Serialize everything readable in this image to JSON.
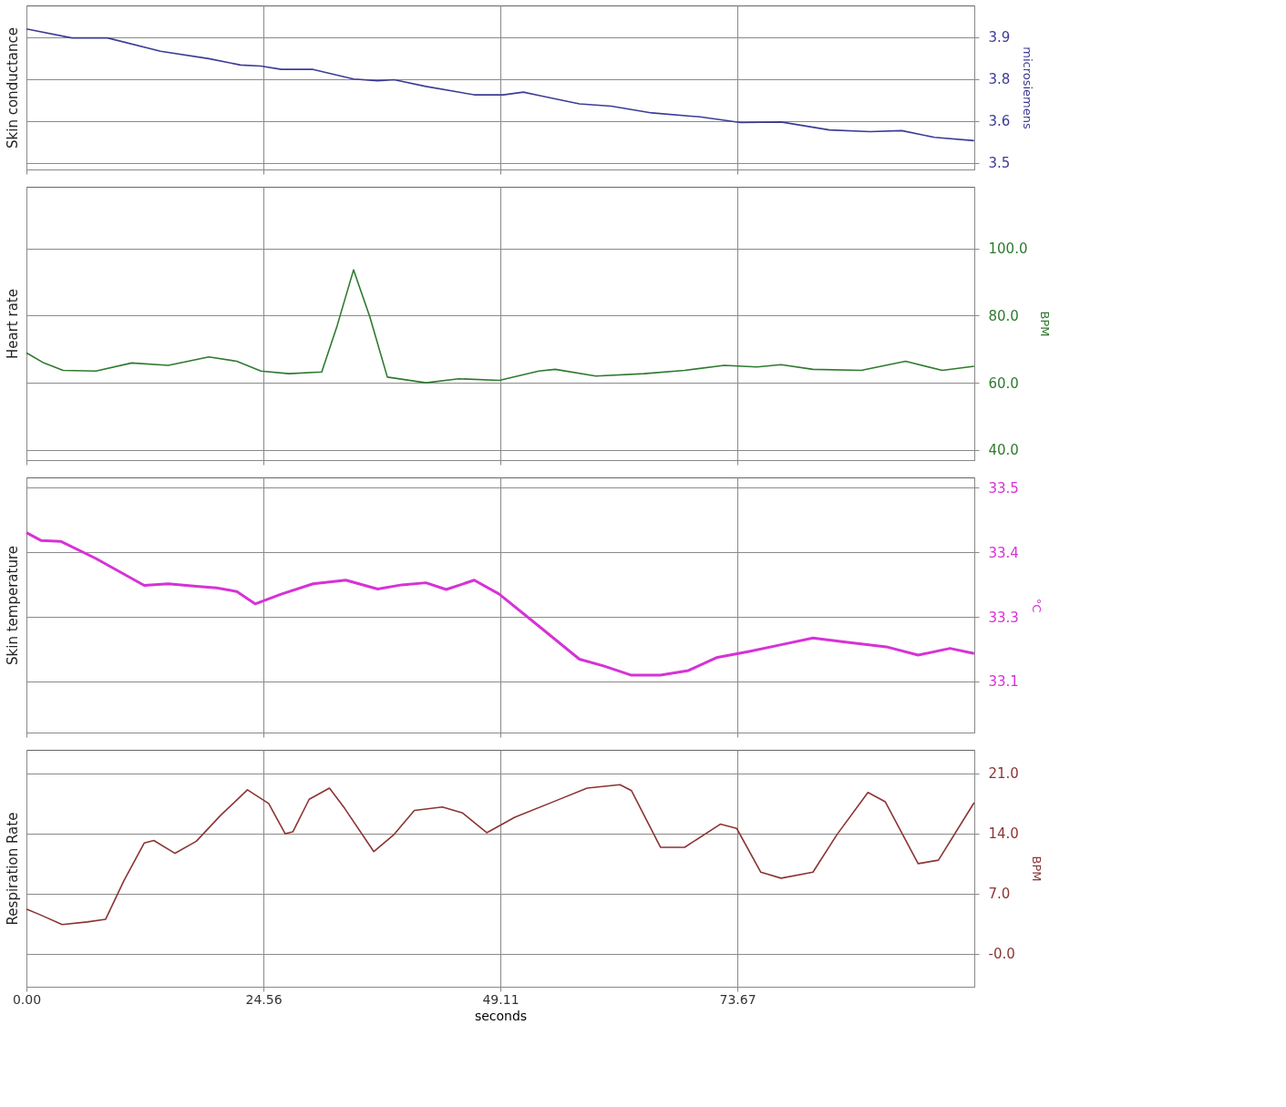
{
  "chart_data": [
    {
      "type": "line",
      "ylabel": "Skin conductance",
      "y2label": "microsiemens",
      "tick_labels": "y",
      "grid": true,
      "xlim": [
        0,
        98.22
      ],
      "xticks": [
        {
          "value": 0,
          "label": null
        },
        {
          "value": 24.56,
          "label": null
        },
        {
          "value": 49.11,
          "label": null
        },
        {
          "value": 73.67,
          "label": null
        }
      ],
      "ylim": [
        3.48,
        3.97
      ],
      "yticks": [
        {
          "value": 3.5,
          "label": "3.5"
        },
        {
          "value": 3.625,
          "label": "3.6"
        },
        {
          "value": 3.75,
          "label": "3.8"
        },
        {
          "value": 3.875,
          "label": "3.9"
        }
      ],
      "x": [
        0,
        4.7,
        8.4,
        13.9,
        18.9,
        22.2,
        24.3,
        26.4,
        29.7,
        33.9,
        36.4,
        38.1,
        41.4,
        46.4,
        49.4,
        51.5,
        53.1,
        57.3,
        60.6,
        64.8,
        69.8,
        74.0,
        78.2,
        83.2,
        87.4,
        90.7,
        94.1,
        98.2
      ],
      "series": [
        {
          "color": "#3c3c96",
          "values": [
            3.9,
            3.873,
            3.873,
            3.833,
            3.811,
            3.792,
            3.789,
            3.779,
            3.779,
            3.75,
            3.745,
            3.748,
            3.728,
            3.703,
            3.703,
            3.711,
            3.701,
            3.676,
            3.669,
            3.649,
            3.637,
            3.62,
            3.622,
            3.598,
            3.593,
            3.596,
            3.576,
            3.566
          ]
        }
      ]
    },
    {
      "type": "line",
      "ylabel": "Heart rate",
      "y2label": "BPM",
      "tick_labels": "y",
      "grid": true,
      "xlim": [
        0,
        98.22
      ],
      "xticks": [
        {
          "value": 0,
          "label": null
        },
        {
          "value": 24.56,
          "label": null
        },
        {
          "value": 49.11,
          "label": null
        },
        {
          "value": 73.67,
          "label": null
        }
      ],
      "ylim": [
        37,
        118.3
      ],
      "yticks": [
        {
          "value": 40,
          "label": "40.0"
        },
        {
          "value": 60,
          "label": "60.0"
        },
        {
          "value": 80,
          "label": "80.0"
        },
        {
          "value": 100,
          "label": "100.0"
        }
      ],
      "x": [
        0,
        1.8,
        3.8,
        7.2,
        10.9,
        14.7,
        18.9,
        21.8,
        24.3,
        27.2,
        30.6,
        32.2,
        33.9,
        35.6,
        37.4,
        41.4,
        44.8,
        49.0,
        53.1,
        54.8,
        59.0,
        64.0,
        68.2,
        72.3,
        75.7,
        78.2,
        81.5,
        86.5,
        91.1,
        94.9,
        98.2
      ],
      "series": [
        {
          "color": "#2f7a2f",
          "values": [
            68.9,
            65.9,
            63.7,
            63.5,
            65.9,
            65.2,
            67.7,
            66.4,
            63.5,
            62.7,
            63.2,
            77,
            93.6,
            79.5,
            61.7,
            60,
            61.2,
            60.7,
            63.5,
            64,
            62,
            62.7,
            63.7,
            65.2,
            64.7,
            65.4,
            64,
            63.7,
            66.4,
            63.7,
            64.9
          ]
        }
      ]
    },
    {
      "type": "line",
      "ylabel": "Skin temperature",
      "y2label": "°C",
      "tick_labels": "y",
      "grid": true,
      "xlim": [
        0,
        98.22
      ],
      "xticks": [
        {
          "value": 0,
          "label": null
        },
        {
          "value": 24.56,
          "label": null
        },
        {
          "value": 49.11,
          "label": null
        },
        {
          "value": 73.67,
          "label": null
        }
      ],
      "ylim": [
        33.026,
        33.52
      ],
      "yticks": [
        {
          "value": 33.125,
          "label": "33.1"
        },
        {
          "value": 33.25,
          "label": "33.3"
        },
        {
          "value": 33.375,
          "label": "33.4"
        },
        {
          "value": 33.5,
          "label": "33.5"
        }
      ],
      "x": [
        0,
        1.5,
        3.6,
        7.2,
        12.2,
        14.7,
        17.6,
        19.7,
        21.8,
        23.7,
        26.4,
        29.7,
        33.1,
        36.4,
        38.9,
        41.4,
        43.5,
        46.4,
        49.0,
        53.1,
        57.3,
        59.8,
        62.7,
        65.7,
        68.6,
        71.5,
        74.9,
        78.2,
        81.5,
        84.9,
        89.1,
        92.4,
        95.7,
        98.2
      ],
      "series": [
        {
          "color": "#d632d6",
          "values": [
            33.413,
            33.398,
            33.396,
            33.363,
            33.311,
            33.314,
            33.309,
            33.306,
            33.299,
            33.275,
            33.294,
            33.314,
            33.321,
            33.304,
            33.312,
            33.316,
            33.303,
            33.321,
            33.294,
            33.232,
            33.168,
            33.155,
            33.137,
            33.137,
            33.146,
            33.171,
            33.183,
            33.196,
            33.209,
            33.201,
            33.192,
            33.176,
            33.189,
            33.179
          ]
        }
      ]
    },
    {
      "type": "line",
      "ylabel": "Respiration Rate",
      "y2label": "BPM",
      "xlabel": "seconds",
      "grid": true,
      "xlim": [
        0,
        98.22
      ],
      "xticks": [
        {
          "value": 0,
          "label": "0.00"
        },
        {
          "value": 24.56,
          "label": "24.56"
        },
        {
          "value": 49.11,
          "label": "49.11"
        },
        {
          "value": 73.67,
          "label": "73.67"
        }
      ],
      "ylim": [
        -3.85,
        23.76
      ],
      "yticks": [
        {
          "value": 0,
          "label": "-0.0"
        },
        {
          "value": 7,
          "label": "7.0"
        },
        {
          "value": 14,
          "label": "14.0"
        },
        {
          "value": 21,
          "label": "21.0"
        }
      ],
      "x": [
        0,
        1.5,
        3.7,
        6.3,
        8.2,
        10.1,
        12.2,
        13.2,
        15.4,
        17.6,
        20.1,
        22.9,
        25.1,
        26.8,
        27.6,
        29.3,
        31.4,
        33.0,
        36.0,
        38.1,
        40.2,
        43.1,
        45.2,
        47.7,
        50.6,
        54.8,
        58.1,
        61.5,
        62.7,
        65.7,
        68.2,
        71.9,
        73.6,
        76.1,
        78.2,
        81.5,
        84.0,
        87.2,
        89.0,
        92.4,
        94.5,
        98.2
      ],
      "series": [
        {
          "color": "#8c3434",
          "values": [
            5.2,
            4.5,
            3.4,
            3.7,
            4.0,
            8.5,
            12.9,
            13.2,
            11.7,
            13.1,
            16.1,
            19.1,
            17.5,
            14.0,
            14.2,
            18.0,
            19.3,
            16.9,
            11.9,
            13.9,
            16.7,
            17.1,
            16.4,
            14.1,
            15.9,
            17.8,
            19.3,
            19.7,
            19.0,
            12.4,
            12.4,
            15.1,
            14.6,
            9.5,
            8.8,
            9.5,
            13.9,
            18.8,
            17.7,
            10.5,
            10.9,
            17.6
          ]
        }
      ]
    }
  ]
}
